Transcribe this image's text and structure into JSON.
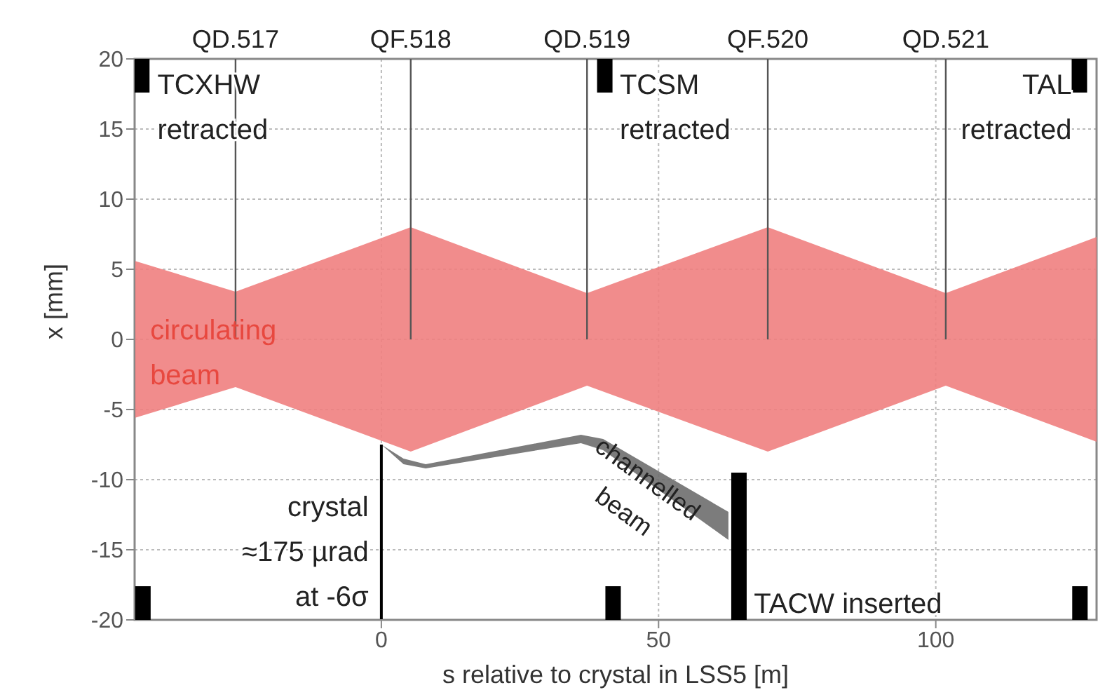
{
  "chart_data": {
    "type": "area",
    "xlabel": "s relative to crystal in LSS5 [m]",
    "ylabel": "x [mm]",
    "xlim": [
      -44.5,
      129
    ],
    "ylim": [
      -20,
      20
    ],
    "xticks": [
      0,
      50,
      100
    ],
    "yticks": [
      -20,
      -15,
      -10,
      -5,
      0,
      5,
      10,
      15,
      20
    ],
    "grid": true,
    "series": [
      {
        "color": "#f08080",
        "x": [
          -44.5,
          -26.3,
          5.3,
          37.1,
          69.7,
          101.8,
          129
        ],
        "values": [
          null,
          null,
          null,
          null,
          null,
          null,
          null
        ],
        "lower": [
          -5.6,
          -3.4,
          -8,
          -3.3,
          -8,
          -3.3,
          -7.3
        ],
        "upper": [
          5.6,
          3.4,
          8,
          3.3,
          8,
          3.3,
          7.3
        ]
      },
      {
        "color": "#6e6e6e",
        "x": [
          0,
          4,
          8,
          36,
          40,
          62.6
        ],
        "values": [
          null,
          null,
          null,
          null,
          null,
          null
        ],
        "lower": [
          -7.5,
          -8.9,
          -9.2,
          -7.4,
          -7.9,
          -14.3
        ],
        "upper": [
          -7.5,
          -8.5,
          -8.9,
          -6.8,
          -7.1,
          -12.3
        ]
      },
      {
        "type": "line",
        "color": "#000000",
        "x": [
          0,
          0
        ],
        "values": [
          -7.5,
          -20
        ]
      },
      {
        "type": "bar",
        "color": "#000000",
        "x": [
          -43.2,
          -43,
          40.3,
          41.8,
          64.5,
          125.9,
          126
        ],
        "base": [
          17.6,
          -20,
          17.6,
          -20,
          -20,
          17.6,
          -20
        ],
        "values": [
          2.4,
          2.4,
          2.4,
          2.4,
          10.5,
          2.4,
          2.4
        ]
      }
    ],
    "ref_lines": [
      {
        "axis": "x",
        "value": -26.3,
        "label": "QD.517",
        "color": "#555555"
      },
      {
        "axis": "x",
        "value": 5.3,
        "label": "QF.518",
        "color": "#555555"
      },
      {
        "axis": "x",
        "value": 37.1,
        "label": "QD.519",
        "color": "#555555"
      },
      {
        "axis": "x",
        "value": 69.7,
        "label": "QF.520",
        "color": "#555555"
      },
      {
        "axis": "x",
        "value": 101.8,
        "label": "QD.521",
        "color": "#555555"
      }
    ],
    "annotations": [
      "TCXHW\nretracted",
      "TCSM\nretracted",
      "TAL\nretracted",
      "circulating\nbeam",
      "channelled\nbeam",
      "crystal\n≈175 µrad\nat -6σ",
      "TACW inserted"
    ]
  }
}
